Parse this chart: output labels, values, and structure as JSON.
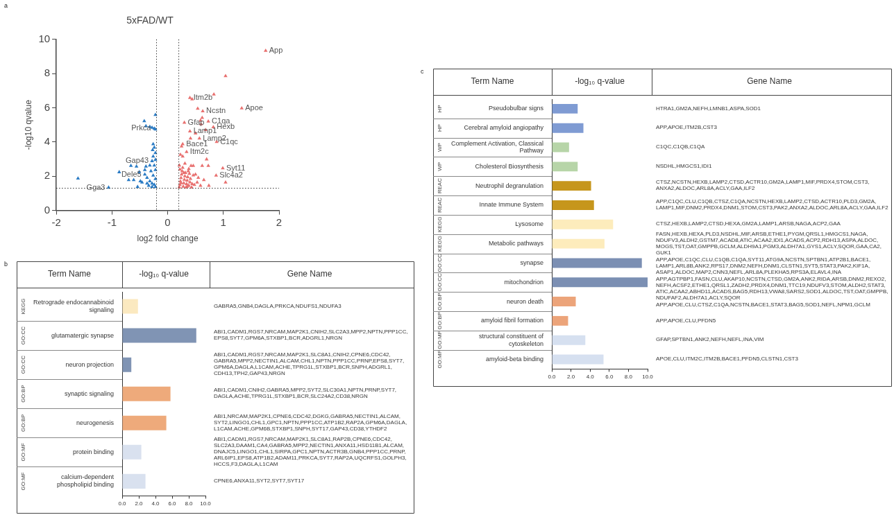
{
  "chart_data": [
    {
      "type": "scatter",
      "title": "5xFAD/WT",
      "xlabel": "log2 fold change",
      "ylabel": "-log10 qvalue",
      "xlim": [
        -2,
        2
      ],
      "xticks": [
        -2,
        -1,
        0,
        1,
        2
      ],
      "ylim": [
        0,
        10
      ],
      "yticks": [
        0,
        2,
        4,
        6,
        8,
        10
      ],
      "grid": false,
      "marker": "triangle",
      "series": [
        {
          "color": "#2a7bc4",
          "x": [
            -0.22,
            -0.42,
            -0.39,
            -0.32,
            -0.28,
            -0.24,
            -0.22,
            -0.26,
            -0.24,
            -0.27,
            -0.22,
            -0.26,
            -0.22,
            -0.28,
            -0.24,
            -0.32,
            -0.39,
            -0.66,
            -0.56,
            -0.87,
            -1.61,
            -1.06,
            -0.7,
            -0.61,
            -0.49,
            -0.46,
            -0.54,
            -0.41,
            -0.37,
            -0.32,
            -0.28,
            -0.24,
            -0.34,
            -0.3,
            -0.22,
            -0.22,
            -0.26,
            -0.37,
            -0.41,
            -0.22,
            -0.51,
            -0.28
          ],
          "values": [
            5.59,
            5.22,
            4.93,
            4.89,
            4.84,
            4.79,
            4.74,
            3.88,
            3.68,
            3.53,
            3.36,
            3.16,
            2.96,
            2.89,
            2.63,
            2.63,
            2.57,
            2.61,
            2.57,
            2.24,
            1.87,
            1.34,
            1.78,
            1.78,
            1.71,
            1.64,
            1.38,
            2.1,
            1.91,
            1.71,
            1.58,
            1.51,
            1.45,
            2.3,
            2.37,
            1.84,
            2.04,
            1.58,
            2.37,
            1.38,
            2.24,
            1.38
          ]
        },
        {
          "color": "#e8706f",
          "x": [
            1.76,
            1.04,
            0.83,
            0.4,
            0.44,
            0.54,
            0.63,
            1.33,
            0.62,
            0.59,
            0.73,
            0.3,
            0.6,
            0.82,
            0.68,
            0.4,
            0.5,
            0.57,
            0.41,
            0.27,
            0.25,
            0.88,
            0.34,
            0.23,
            0.27,
            0.7,
            0.99,
            0.31,
            0.42,
            0.46,
            0.62,
            0.73,
            0.38,
            0.21,
            0.87,
            1.04,
            0.5,
            0.55,
            0.65,
            0.59,
            0.74,
            0.53,
            0.21,
            0.22,
            0.23,
            0.24,
            0.25,
            0.26,
            0.28,
            0.29,
            0.3,
            0.31,
            0.32,
            0.33,
            0.34,
            0.35,
            0.36,
            0.37,
            0.38,
            0.4,
            0.41,
            0.43,
            0.44,
            0.46,
            0.48,
            0.22,
            0.27,
            0.24,
            0.29,
            0.35,
            0.39
          ],
          "values": [
            9.34,
            7.86,
            6.78,
            6.58,
            6.5,
            5.95,
            5.8,
            5.97,
            5.42,
            5.26,
            5.2,
            5.13,
            5.04,
            4.87,
            4.71,
            4.63,
            4.51,
            4.21,
            4.21,
            3.88,
            3.75,
            4.01,
            3.42,
            3.26,
            3.16,
            2.99,
            2.47,
            2.74,
            2.61,
            2.61,
            2.61,
            2.61,
            2.43,
            2.63,
            2.04,
            1.64,
            2.1,
            1.91,
            1.78,
            1.45,
            1.45,
            1.64,
            1.35,
            1.5,
            1.7,
            1.9,
            2.1,
            2.3,
            1.4,
            1.6,
            1.8,
            2.0,
            2.2,
            1.35,
            1.55,
            1.75,
            1.95,
            2.3,
            1.45,
            1.65,
            1.85,
            1.35,
            1.55,
            2.05,
            1.5,
            2.4,
            2.5,
            1.6,
            2.2,
            1.4,
            2.15
          ]
        }
      ],
      "ref_lines": [
        {
          "axis": "x",
          "value": -0.2,
          "line_style": "dotted",
          "color": "#333333"
        },
        {
          "axis": "x",
          "value": 0.2,
          "line_style": "dotted",
          "color": "#333333"
        },
        {
          "axis": "y",
          "value": 1.3,
          "line_style": "dotted",
          "color": "#333333"
        }
      ],
      "annotations": [
        "a",
        {
          "text": "App",
          "x": 1.76,
          "y": 9.34
        },
        {
          "text": "Apoe",
          "x": 1.33,
          "y": 5.97
        },
        {
          "text": "Itm2b",
          "x": 0.4,
          "y": 6.58
        },
        {
          "text": "Ncstn",
          "x": 0.63,
          "y": 5.8
        },
        {
          "text": "C1qa",
          "x": 0.73,
          "y": 5.2
        },
        {
          "text": "Gfap",
          "x": 0.3,
          "y": 5.13
        },
        {
          "text": "Hexb",
          "x": 0.82,
          "y": 4.87
        },
        {
          "text": "Lamp1",
          "x": 0.4,
          "y": 4.63
        },
        {
          "text": "Lamp2",
          "x": 0.57,
          "y": 4.21
        },
        {
          "text": "Bace1",
          "x": 0.27,
          "y": 3.88
        },
        {
          "text": "C1qc",
          "x": 0.88,
          "y": 4.01
        },
        {
          "text": "Itm2c",
          "x": 0.34,
          "y": 3.42
        },
        {
          "text": "Syt11",
          "x": 0.99,
          "y": 2.47
        },
        {
          "text": "Slc4a2",
          "x": 0.87,
          "y": 2.04
        },
        {
          "text": "Prkca",
          "x": -0.24,
          "y": 4.79
        },
        {
          "text": "Gap43",
          "x": -0.28,
          "y": 2.89
        },
        {
          "text": "Dele5",
          "x": -0.41,
          "y": 2.1
        },
        {
          "text": "Gga3",
          "x": -1.06,
          "y": 1.34
        }
      ]
    },
    {
      "type": "bar",
      "orientation": "horizontal",
      "ylabel": "Term Name",
      "xlabel": "-log₁₀ q-value",
      "categories": [
        "Retrograde endocannabinoid signaling",
        "glutamatergic synapse",
        "neuron projection",
        "synaptic signaling",
        "neurogenesis",
        "protein binding",
        "calcium-dependent phospholipid binding"
      ],
      "y2_categories": [
        "KEGG",
        "GO:CC",
        "GO:CC",
        "GO:BP",
        "GO:BP",
        "GO:MF",
        "GO:MF"
      ],
      "values": [
        1.9,
        8.9,
        1.1,
        5.8,
        5.3,
        2.3,
        2.8
      ],
      "colors": [
        "#fbe9c0",
        "#8094b4",
        "#8094b4",
        "#eeaa7b",
        "#eeaa7b",
        "#d9e1ef",
        "#d9e1ef"
      ],
      "xlim": [
        0,
        10
      ],
      "xticks": [
        {
          "value": 0,
          "label": "0.0"
        },
        {
          "value": 2,
          "label": "2.0"
        },
        {
          "value": 4,
          "label": "4.0"
        },
        {
          "value": 6,
          "label": "6.0"
        },
        {
          "value": 8,
          "label": "8.0"
        },
        {
          "value": 10,
          "label": "10.0"
        }
      ],
      "grid": false,
      "annotations": [
        "b",
        "Gene Name",
        "GABRA5,GNB4,DAGLA,PRKCA,NDUFS1,NDUFA3",
        "ABI1,CADM1,RGS7,NRCAM,MAP2K1,CNIH2,SLC2A3,MPP2,NPTN,PPP1CC,EPS8,SYT7,GPM6A,STXBP1,BCR,ADGRL1,NRGN",
        "ABI1,CADM1,RGS7,NRCAM,MAP2K1,SLC8A1,CNIH2,CPNE6,CDC42,GABRA5,MPP2,NECTIN1,ALCAM,CHL1,NPTN,PPP1CC,PRNP,EPS8,SYT7,GPM6A,DAGLA,L1CAM,ACHE,TPRG1L,STXBP1,BCR,SNPH,ADGRL1,CDH13,TPH2,GAP43,NRGN",
        "ABI1,CADM1,CNIH2,GABRA5,MPP2,SYT2,SLC30A1,NPTN,PRNP,SYT7,DAGLA,ACHE,TPRG1L,STXBP1,BCR,SLC24A2,CD38,NRGN",
        "ABI1,NRCAM,MAP2K1,CPNE6,CDC42,DGKG,GABRA5,NECTIN1,ALCAM,SYT2,LINGO1,CHL1,GPC1,NPTN,PPP1CC,ATP1B2,RAP2A,GPM6A,DAGLA,L1CAM,ACHE,GPM6B,STXBP1,SNPH,SYT17,GAP43,CD38,YTHDF2",
        "ABI1,CADM1,RGS7,NRCAM,MAP2K1,SLC8A1,RAP2B,CPNE6,CDC42,SLC2A3,DAAM1,CA4,GABRA5,MPP2,NECTIN1,ANXA11,HSD11B1,ALCAM,DNAJC5,LINGO1,CHL1,SIRPA,GPC1,NPTN,ACTR3B,GNB4,PPP1CC,PRNP,ARL6IP1,EPS8,ATP1B2,ADAM11,PRKCA,SYT7,RAP2A,UQCRFS1,GOLPH3,HCCS,F3,DAGLA,L1CAM",
        "CPNE6,ANXA11,SYT2,SYT7,SYT17"
      ]
    },
    {
      "type": "bar",
      "orientation": "horizontal",
      "ylabel": "Term Name",
      "xlabel": "-log₁₀ q-value",
      "categories": [
        "Pseudobulbar signs",
        "Cerebral amyloid angiopathy",
        "Complement Activation, Classical Pathway",
        "Cholesterol Biosynthesis",
        "Neutrophil degranulation",
        "Innate Immune System",
        "Lysosome",
        "Metabolic pathways",
        "synapse",
        "mitochondrion",
        "neuron death",
        "amyloid fibril formation",
        "structural constituent of cytoskeleton",
        "amyloid-beta binding"
      ],
      "y2_categories": [
        "HP",
        "HP",
        "WP",
        "WP",
        "REAC",
        "REAC",
        "KEGG",
        "KEGG",
        "GO:CC",
        "GO:CC",
        "GO:BP",
        "GO:BP",
        "GO:MF",
        "GO:MF"
      ],
      "values": [
        2.7,
        3.3,
        1.8,
        2.7,
        4.1,
        4.4,
        6.4,
        5.5,
        9.4,
        10.0,
        2.5,
        1.7,
        3.5,
        5.4
      ],
      "colors": [
        "#7f9bd3",
        "#7f9bd3",
        "#b7d5a8",
        "#b7d5a8",
        "#c6961c",
        "#c6961c",
        "#fdecbc",
        "#fdecbc",
        "#7b8fb3",
        "#7b8fb3",
        "#eca47a",
        "#eca47a",
        "#d6e0f0",
        "#d6e0f0"
      ],
      "xlim": [
        0,
        10
      ],
      "xticks": [
        {
          "value": 0,
          "label": "0.0"
        },
        {
          "value": 2,
          "label": "2.0"
        },
        {
          "value": 4,
          "label": "4.0"
        },
        {
          "value": 6,
          "label": "6.0"
        },
        {
          "value": 8,
          "label": "8.0"
        },
        {
          "value": 10,
          "label": "10.0"
        }
      ],
      "grid": false,
      "annotations": [
        "c",
        "Gene Name",
        "HTRA1,GM2A,NEFH,LMNB1,ASPA,SOD1",
        "APP,APOE,ITM2B,CST3",
        "C1QC,C1QB,C1QA",
        "NSDHL,HMGCS1,IDI1",
        "CTSZ,NCSTN,HEXB,LAMP2,CTSD,ACTR10,GM2A,LAMP1,MIF,PRDX4,STOM,CST3,ANXA2,ALDOC,ARL8A,ACLY,GAA,ILF2",
        "APP,C1QC,CLU,C1QB,CTSZ,C1QA,NCSTN,HEXB,LAMP2,CTSD,ACTR10,PLD3,GM2A,LAMP1,MIF,DNM2,PRDX4,DNM1,STOM,CST3,PAK2,ANXA2,ALDOC,ARL8A,ACLY,GAA,ILF2",
        "CTSZ,HEXB,LAMP2,CTSD,HEXA,GM2A,LAMP1,ARSB,NAGA,ACP2,GAA",
        "FASN,HEXB,HEXA,PLD3,NSDHL,MIF,ARSB,ETHE1,PYGM,QRSL1,HMGCS1,NAGA,NDUFV3,ALDH2,GSTM7,ACAD8,ATIC,ACAA2,IDI1,ACADS,ACP2,RDH13,ASPA,ALDOC,MOGS,TST,OAT,GMPPB,GCLM,ALDH9A1,PGM3,ALDH7A1,GYS1,ACLY,SQOR,GAA,CA2,GUK1",
        "APP,APOE,C1QC,CLU,C1QB,C1QA,SYT11,ATG9A,NCSTN,SPTBN1,ATP2B1,BACE1,LAMP1,ARL8B,ANK2,RPS17,DNM2,NEFH,DNM1,CLSTN1,SYT5,STAT3,PAK2,KIF1A,ASAP1,ALDOC,MAP2,CNN3,NEFL,ARL8A,PLEKHA5,RPS3A,ELAVL4,INA",
        "APP,AGTPBP1,FASN,CLU,AKAP10,NCSTN,CTSD,GM2A,ANK2,RIDA,ARSB,DNM2,REXO2,NEFH,ACSF2,ETHE1,QRSL1,ZADH2,PRDX4,DNM1,TTC19,NDUFV3,STOM,ALDH2,STAT3,ATIC,ACAA2,ABHD11,ACADS,BAG5,RDH13,VWA8,SARS2,SOD1,ALDOC,TST,OAT,GMPPB,NDUFAF2,ALDH7A1,ACLY,SQOR",
        "APP,APOE,CLU,CTSZ,C1QA,NCSTN,BACE1,STAT3,BAG5,SOD1,NEFL,NPM1,GCLM",
        "APP,APOE,CLU,PFDN5",
        "GFAP,SPTBN1,ANK2,NEFH,NEFL,INA,VIM",
        "APOE,CLU,ITM2C,ITM2B,BACE1,PFDN5,CLSTN1,CST3"
      ]
    }
  ]
}
